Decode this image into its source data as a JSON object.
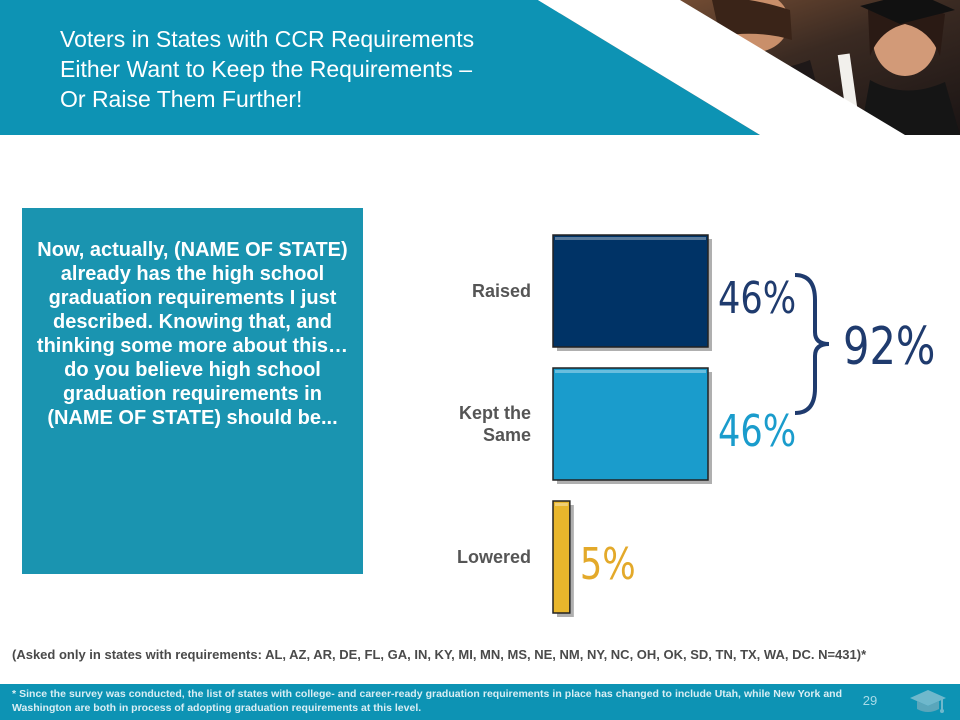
{
  "title_lines": [
    "Voters in States with CCR Requirements",
    "Either Want to Keep the Requirements –",
    "Or Raise Them Further!"
  ],
  "question": "Now, actually, (NAME OF STATE) already has the high school graduation requirements I just described.  Knowing that, and thinking some more about this…do you believe high school graduation requirements in (NAME OF STATE) should be...",
  "chart_data": {
    "type": "bar",
    "orientation": "horizontal",
    "categories": [
      "Raised",
      "Kept the Same",
      "Lowered"
    ],
    "category_lines": [
      [
        "Raised"
      ],
      [
        "Kept the",
        "Same"
      ],
      [
        "Lowered"
      ]
    ],
    "values": [
      46,
      46,
      5
    ],
    "value_labels": [
      "46%",
      "46%",
      "5%"
    ],
    "unit": "%",
    "bar_colors": [
      "#003366",
      "#1a9ccc",
      "#e8b62c"
    ],
    "value_label_colors": [
      "#1f3b6e",
      "#1a9ccc",
      "#e3a92a"
    ],
    "bracket": {
      "groups": [
        "Raised",
        "Kept the Same"
      ],
      "label": "92%",
      "value": 92
    },
    "xlim": [
      0,
      46
    ]
  },
  "asked_note": "(Asked only in states with requirements: AL, AZ, AR, DE, FL, GA, IN, KY, MI, MN, MS, NE, NM, NY, NC, OH, OK, SD, TN, TX, WA, DC. N=431)*",
  "footnote": "* Since the survey was conducted, the list of states with college- and career-ready graduation requirements in place has changed to include Utah, while New York and Washington are both in process of adopting graduation requirements at this level.",
  "page_number": "29",
  "colors": {
    "accent": "#0d93b4",
    "question_box": "#1a94b0"
  },
  "icons": [
    "graduation-cap-icon"
  ]
}
